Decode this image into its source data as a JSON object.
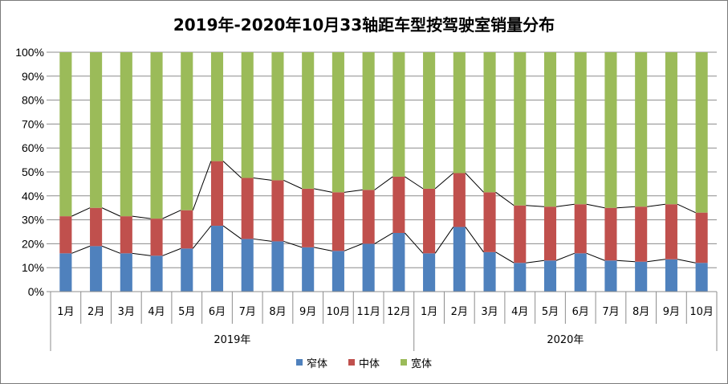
{
  "chart_data": {
    "type": "bar",
    "stacked": true,
    "percent": true,
    "title": "2019年-2020年10月33轴距车型按驾驶室销量分布",
    "groups": [
      {
        "label": "2019年",
        "categories": [
          "1月",
          "2月",
          "3月",
          "4月",
          "5月",
          "6月",
          "7月",
          "8月",
          "9月",
          "10月",
          "11月",
          "12月"
        ]
      },
      {
        "label": "2020年",
        "categories": [
          "1月",
          "2月",
          "3月",
          "4月",
          "5月",
          "6月",
          "7月",
          "8月",
          "9月",
          "10月"
        ]
      }
    ],
    "yticks": [
      "0%",
      "10%",
      "20%",
      "30%",
      "40%",
      "50%",
      "60%",
      "70%",
      "80%",
      "90%",
      "100%"
    ],
    "ylim": [
      0,
      100
    ],
    "series": [
      {
        "name": "窄体",
        "color": "#4f81bd",
        "values": [
          16,
          19,
          16,
          15,
          18,
          27.5,
          22,
          21,
          18.5,
          17,
          20,
          24.5,
          16,
          27,
          16.5,
          12,
          13,
          16,
          13,
          12.5,
          13.5,
          12
        ]
      },
      {
        "name": "中体",
        "color": "#c0504d",
        "values": [
          15.5,
          16,
          15.5,
          15.5,
          16,
          27,
          25.5,
          25.5,
          24.5,
          24.5,
          22.5,
          23.5,
          27,
          22.5,
          25,
          24,
          22.5,
          20.5,
          22,
          23,
          23,
          21
        ]
      },
      {
        "name": "宽体",
        "color": "#9bbb59",
        "values": [
          68.5,
          65,
          68.5,
          69.5,
          66,
          45.5,
          52.5,
          53.5,
          57,
          58.5,
          57.5,
          52,
          57,
          50.5,
          58.5,
          64,
          64.5,
          63.5,
          65,
          64.5,
          63.5,
          67
        ]
      }
    ],
    "series_lines": true,
    "grid": true,
    "legend_position": "bottom"
  }
}
